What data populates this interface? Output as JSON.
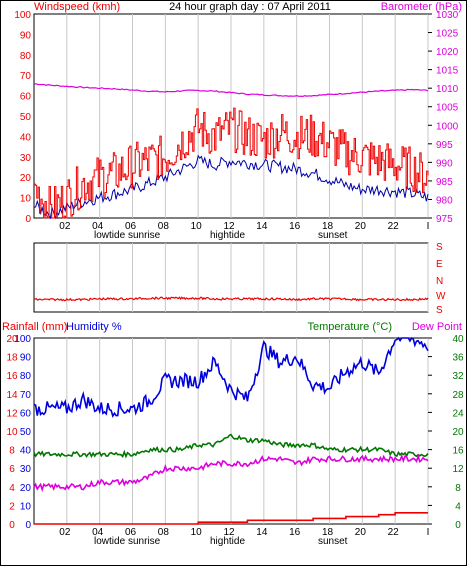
{
  "colors": {
    "wind": "#ee0000",
    "wind_avg": "#0000aa",
    "baro": "#dd00dd",
    "dir": "#ee0000",
    "rain": "#ee0000",
    "humidity": "#0000dd",
    "temp": "#007700",
    "dew": "#dd00dd",
    "grid": "#c8c8c8"
  },
  "header": {
    "wind_label": "Windspeed (kmh)",
    "title": "24 hour graph day : 07 April 2011",
    "baro_label": "Barometer (hPa)"
  },
  "panel2_labels": [
    "S",
    "E",
    "N",
    "W",
    "S"
  ],
  "panel3_header": {
    "rain_label": "Rainfall (mm)",
    "humidity_label": "Humidity %",
    "temp_label": "Temperature (°C)",
    "dew_label": "Dew Point"
  },
  "x_ticks": [
    "02",
    "04",
    "06",
    "08",
    "10",
    "12",
    "14",
    "16",
    "18",
    "20",
    "22",
    "I"
  ],
  "annotations_1": {
    "lowtide": "lowtide",
    "sunrise": "sunrise",
    "hightide": "hightide",
    "sunset": "sunset"
  },
  "annotations_3": {
    "lowtide": "lowtide",
    "sunrise": "sunrise",
    "hightide": "hightide",
    "sunset": "sunset"
  },
  "chart_data": [
    {
      "type": "line",
      "title": "24 hour graph day : 07 April 2011",
      "ylabel": "Windspeed (kmh)",
      "y2label": "Barometer (hPa)",
      "ylim": [
        0,
        100
      ],
      "y2lim": [
        975,
        1030
      ],
      "y_ticks": [
        0,
        10,
        20,
        30,
        40,
        50,
        60,
        70,
        80,
        90,
        100
      ],
      "y2_ticks": [
        975,
        980,
        985,
        990,
        995,
        1000,
        1005,
        1010,
        1015,
        1020,
        1025,
        1030
      ],
      "x_hours": [
        0,
        1,
        2,
        3,
        4,
        5,
        6,
        7,
        8,
        9,
        10,
        11,
        12,
        13,
        14,
        15,
        16,
        17,
        18,
        19,
        20,
        21,
        22,
        23,
        24
      ],
      "series": [
        {
          "name": "Windspeed (kmh)",
          "values": [
            15,
            4,
            10,
            17,
            20,
            22,
            26,
            28,
            30,
            38,
            44,
            40,
            44,
            40,
            38,
            42,
            40,
            40,
            36,
            32,
            30,
            28,
            26,
            24,
            20
          ]
        },
        {
          "name": "average",
          "values": [
            6,
            2,
            5,
            8,
            10,
            12,
            14,
            17,
            20,
            24,
            28,
            26,
            28,
            27,
            26,
            25,
            24,
            22,
            19,
            16,
            14,
            14,
            13,
            12,
            10
          ]
        },
        {
          "name": "Barometer (hPa)",
          "values": [
            1011.2,
            1010.8,
            1010.5,
            1010.2,
            1010.0,
            1009.8,
            1009.5,
            1009.2,
            1009.0,
            1009.3,
            1009.4,
            1009.2,
            1008.8,
            1008.4,
            1008.2,
            1008.0,
            1007.9,
            1008.0,
            1008.3,
            1008.6,
            1008.9,
            1009.2,
            1009.4,
            1009.6,
            1009.4
          ]
        }
      ]
    },
    {
      "type": "line",
      "y_ticks": [
        "S",
        "E",
        "N",
        "W",
        "S"
      ],
      "x_hours": [
        0,
        1,
        2,
        3,
        4,
        5,
        6,
        7,
        8,
        9,
        10,
        11,
        12,
        13,
        14,
        15,
        16,
        17,
        18,
        19,
        20,
        21,
        22,
        23,
        24
      ],
      "series": [
        {
          "values": [
            82,
            82,
            82,
            82,
            81,
            81,
            81,
            80,
            80,
            80,
            80,
            81,
            81,
            81,
            81,
            81,
            82,
            81,
            81,
            81,
            82,
            82,
            82,
            82,
            81
          ]
        }
      ]
    },
    {
      "type": "line",
      "ylabel": "Rainfall (mm)",
      "y2label": "Temperature (°C)",
      "y_ticks_rain": [
        0,
        2,
        4,
        6,
        8,
        10,
        12,
        14,
        16,
        18,
        20
      ],
      "y_ticks_humidity": [
        0,
        10,
        20,
        30,
        40,
        50,
        60,
        70,
        80,
        90,
        100
      ],
      "y2_ticks": [
        0,
        4,
        8,
        12,
        16,
        20,
        24,
        28,
        32,
        36,
        40
      ],
      "x_hours": [
        0,
        1,
        2,
        3,
        4,
        5,
        6,
        7,
        8,
        9,
        10,
        11,
        12,
        13,
        14,
        15,
        16,
        17,
        18,
        19,
        20,
        21,
        22,
        23,
        24
      ],
      "series": [
        {
          "name": "Rainfall (mm)",
          "values": [
            0,
            0,
            0,
            0,
            0,
            0,
            0,
            0,
            0,
            0,
            0.2,
            0.2,
            0.2,
            0.4,
            0.4,
            0.4,
            0.4,
            0.6,
            0.6,
            0.8,
            0.8,
            1.0,
            1.2,
            1.2,
            1.2
          ]
        },
        {
          "name": "Humidity %",
          "values": [
            62,
            62,
            62,
            67,
            62,
            62,
            62,
            66,
            77,
            77,
            77,
            87,
            72,
            67,
            95,
            87,
            90,
            75,
            73,
            82,
            87,
            81,
            100,
            100,
            96
          ]
        },
        {
          "name": "Temperature (°C)",
          "values": [
            15,
            15,
            15,
            15,
            15,
            15,
            15,
            16,
            16,
            16,
            17,
            17,
            19,
            18,
            18,
            17,
            17,
            17,
            16,
            16,
            16,
            16,
            15,
            15,
            15
          ]
        },
        {
          "name": "Dew Point",
          "values": [
            8,
            8,
            8,
            8,
            9,
            9,
            9,
            10,
            12,
            12,
            12,
            13,
            13,
            13,
            14,
            14,
            13,
            14,
            14,
            14,
            14,
            14,
            14,
            14,
            14
          ]
        }
      ]
    }
  ]
}
